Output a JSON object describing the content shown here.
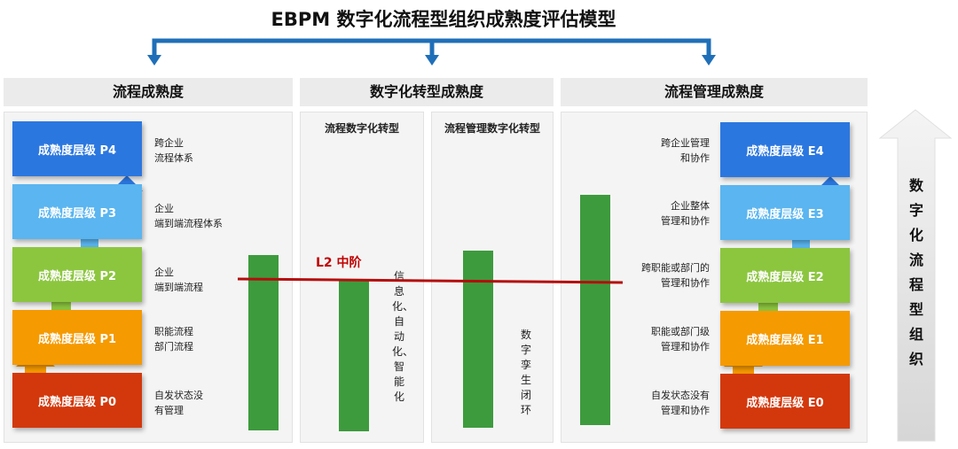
{
  "title": "EBPM 数字化流程型组织成熟度评估模型",
  "headers": {
    "left": "流程成熟度",
    "middle": "数字化转型成熟度",
    "right": "流程管理成熟度"
  },
  "subheaders": {
    "process_digital": "流程数字化转型",
    "mgmt_digital": "流程管理数字化转型"
  },
  "p_levels": [
    {
      "label": "成熟度层级 P4",
      "desc1": "跨企业",
      "desc2": "流程体系",
      "color": "#2b77e0"
    },
    {
      "label": "成熟度层级 P3",
      "desc1": "企业",
      "desc2": "端到端流程体系",
      "color": "#5ab5f0"
    },
    {
      "label": "成熟度层级 P2",
      "desc1": "企业",
      "desc2": "端到端流程",
      "color": "#8cc63f"
    },
    {
      "label": "成熟度层级 P1",
      "desc1": "职能流程",
      "desc2": "部门流程",
      "color": "#f59a00"
    },
    {
      "label": "成熟度层级 P0",
      "desc1": "自发状态没",
      "desc2": "有管理",
      "color": "#d3380c"
    }
  ],
  "e_levels": [
    {
      "label": "成熟度层级 E4",
      "desc1": "跨企业管理",
      "desc2": "和协作",
      "color": "#2b77e0"
    },
    {
      "label": "成熟度层级 E3",
      "desc1": "企业整体",
      "desc2": "管理和协作",
      "color": "#5ab5f0"
    },
    {
      "label": "成熟度层级 E2",
      "desc1": "跨职能或部门的",
      "desc2": "管理和协作",
      "color": "#8cc63f"
    },
    {
      "label": "成熟度层级 E1",
      "desc1": "职能或部门级",
      "desc2": "管理和协作",
      "color": "#f59a00"
    },
    {
      "label": "成熟度层级 E0",
      "desc1": "自发状态没有",
      "desc2": "管理和协作",
      "color": "#d3380c"
    }
  ],
  "mid_text_1": "信息化、自动化、智能化",
  "mid_text_2": "数字孪生闭环",
  "l2_label": "L2 中阶",
  "side_label": "数字化流程型组织",
  "colors": {
    "bar": "#3d9b3d",
    "connector": "#1f6fb8",
    "l2_line": "#b50d0d"
  }
}
